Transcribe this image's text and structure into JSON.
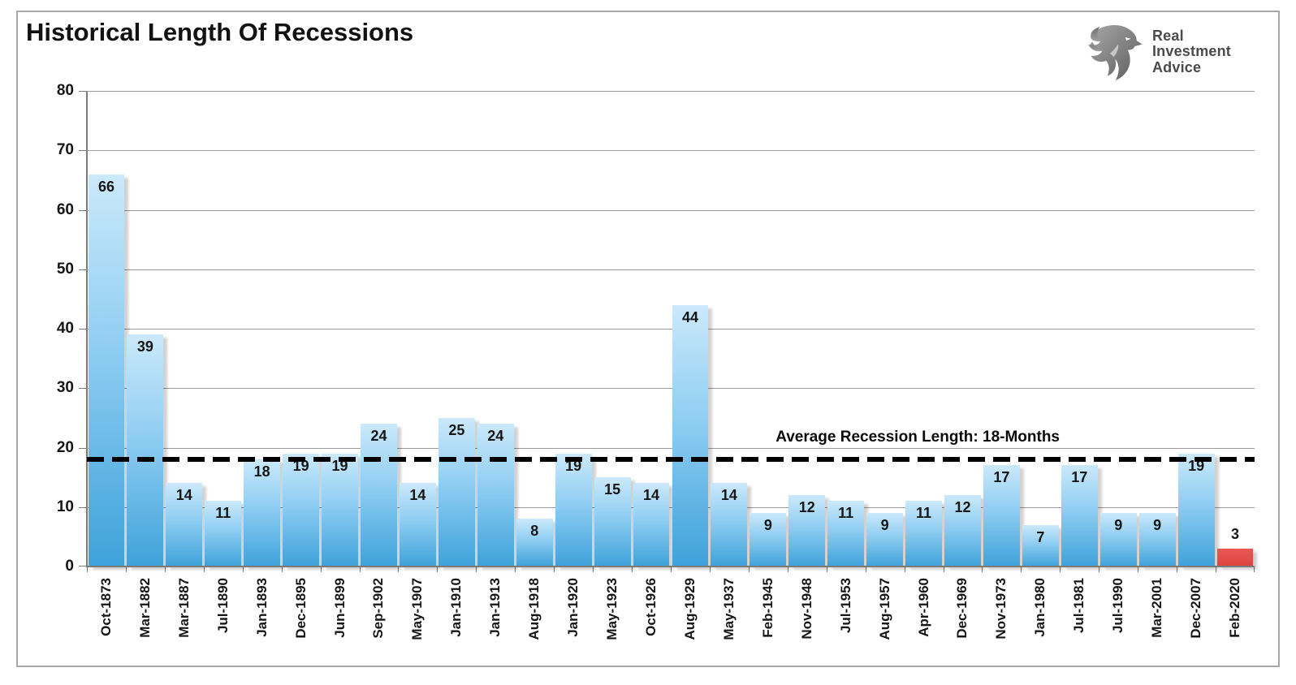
{
  "title": "Historical Length Of Recessions",
  "logo": {
    "icon": "eagle-icon",
    "lines": [
      "Real",
      "Investment",
      "Advice"
    ]
  },
  "chart_data": {
    "type": "bar",
    "title": "Historical Length Of Recessions",
    "categories": [
      "Oct-1873",
      "Mar-1882",
      "Mar-1887",
      "Jul-1890",
      "Jan-1893",
      "Dec-1895",
      "Jun-1899",
      "Sep-1902",
      "May-1907",
      "Jan-1910",
      "Jan-1913",
      "Aug-1918",
      "Jan-1920",
      "May-1923",
      "Oct-1926",
      "Aug-1929",
      "May-1937",
      "Feb-1945",
      "Nov-1948",
      "Jul-1953",
      "Aug-1957",
      "Apr-1960",
      "Dec-1969",
      "Nov-1973",
      "Jan-1980",
      "Jul-1981",
      "Jul-1990",
      "Mar-2001",
      "Dec-2007",
      "Feb-2020"
    ],
    "values": [
      66,
      39,
      14,
      11,
      18,
      19,
      19,
      24,
      14,
      25,
      24,
      8,
      19,
      15,
      14,
      44,
      14,
      9,
      12,
      11,
      9,
      11,
      12,
      17,
      7,
      17,
      9,
      9,
      19,
      3
    ],
    "xlabel": "",
    "ylabel": "",
    "ylim": [
      0,
      80
    ],
    "yticks": [
      0,
      10,
      20,
      30,
      40,
      50,
      60,
      70,
      80
    ],
    "grid": true,
    "legend_position": "none",
    "average_line": {
      "value": 18,
      "label": "Average Recession Length: 18-Months"
    },
    "colors": {
      "bar_gradient_top": "#cbe9fb",
      "bar_gradient_mid": "#8ecdf2",
      "bar_gradient_bottom": "#3ea2da",
      "highlight_bar": "#dc4340",
      "highlight_index": 29,
      "average_line_color": "#000000",
      "gridline": "#9b9b9b",
      "axis": "#7a7a7a"
    }
  }
}
